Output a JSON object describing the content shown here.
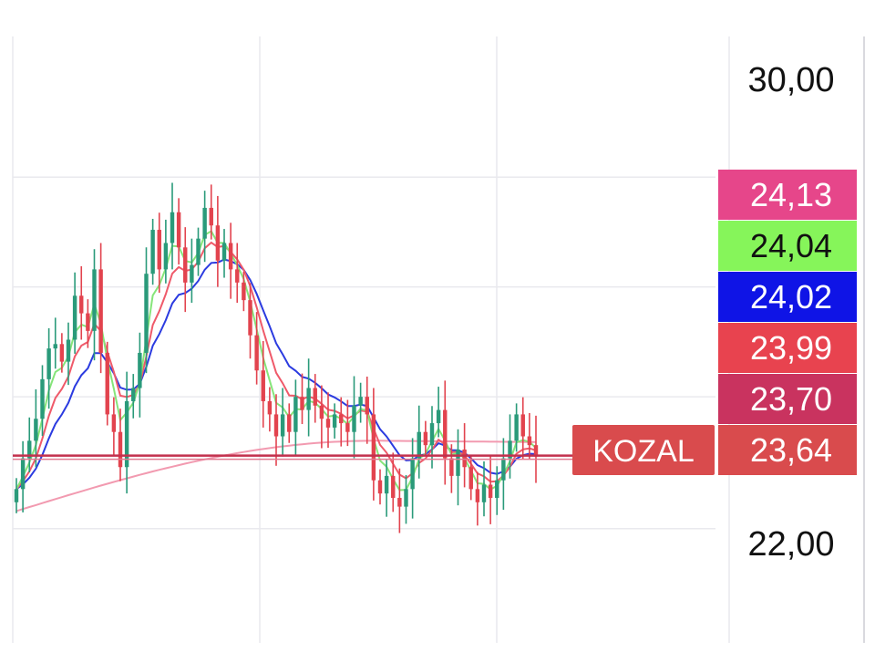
{
  "chart_data": {
    "type": "candlestick",
    "ticker": "KOZAL",
    "last_price": "23,64",
    "y_axis_labels": [
      "30,00",
      "22,00"
    ],
    "y_axis_values": [
      30,
      22
    ],
    "ylim": [
      19.4,
      33.2
    ],
    "grid": true,
    "price_tags": [
      {
        "value": 24.13,
        "label": "24,13",
        "color": "#e6468a",
        "text_color": "#ffffff"
      },
      {
        "value": 24.04,
        "label": "24,04",
        "color": "#86f55a",
        "text_color": "#111111"
      },
      {
        "value": 24.02,
        "label": "24,02",
        "color": "#0f14e6",
        "text_color": "#ffffff"
      },
      {
        "value": 23.99,
        "label": "23,99",
        "color": "#e8434f",
        "text_color": "#ffffff"
      },
      {
        "value": 23.7,
        "label": "23,70",
        "color": "#c9335f",
        "text_color": "#ffffff"
      },
      {
        "value": 23.64,
        "label": "23,64",
        "color": "#d94b4d",
        "text_color": "#ffffff"
      }
    ],
    "colors": {
      "up": "#2a9a7a",
      "down": "#e2434e",
      "ma_fast": "#86e57a",
      "ma_mid": "#ef5a6a",
      "ma_slow": "#2b3be0",
      "ma_long": "#f29ab0",
      "price_line": "#c2304d",
      "grid": "#e9e9ee",
      "axis_text": "#111111"
    }
  }
}
